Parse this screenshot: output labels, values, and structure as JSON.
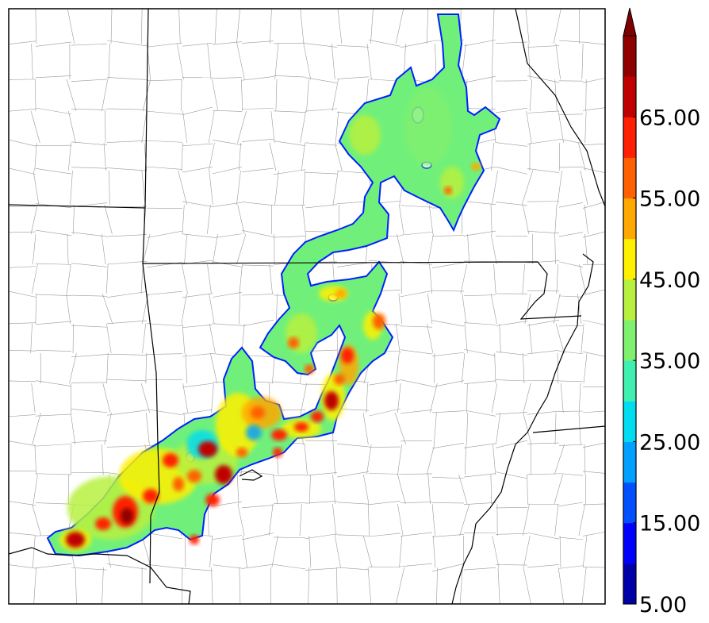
{
  "colorbar": {
    "labels": [
      "5.00",
      "15.00",
      "25.00",
      "35.00",
      "45.00",
      "55.00",
      "65.00"
    ],
    "extend": "max",
    "colors": [
      "#0000a8",
      "#0000ff",
      "#0050ff",
      "#00a0ff",
      "#00dcf0",
      "#40f0b0",
      "#80f070",
      "#b8f040",
      "#fff000",
      "#ffa800",
      "#ff6000",
      "#ff2000",
      "#c00000",
      "#900000",
      "#800000"
    ]
  },
  "map": {
    "feature": "reflectivity swath",
    "lines": {
      "state": "#000000",
      "county": "#9a9a9a"
    }
  }
}
